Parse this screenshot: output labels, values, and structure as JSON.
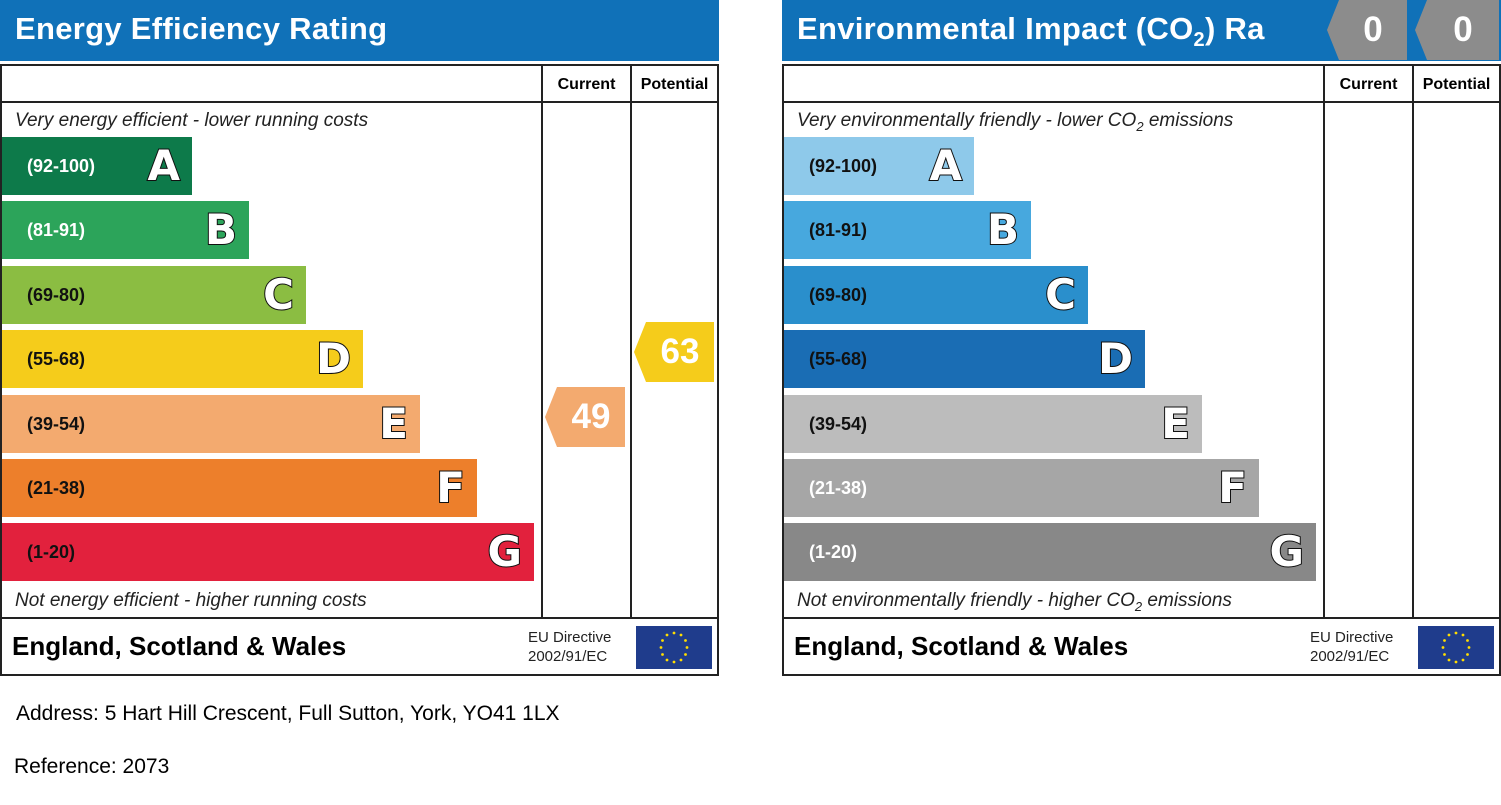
{
  "chart_data": [
    {
      "type": "bar",
      "title": "Energy Efficiency Rating",
      "columns": [
        "Current",
        "Potential"
      ],
      "top_note": "Very energy efficient - lower running costs",
      "bottom_note": "Not energy efficient - higher running costs",
      "categories": [
        "A",
        "B",
        "C",
        "D",
        "E",
        "F",
        "G"
      ],
      "ranges": [
        "(92-100)",
        "(81-91)",
        "(69-80)",
        "(55-68)",
        "(39-54)",
        "(21-38)",
        "(1-20)"
      ],
      "band_colors": [
        "#0d7a4a",
        "#2ca45a",
        "#8bbd42",
        "#f5cc1b",
        "#f3aa6f",
        "#ed7f2b",
        "#e2213d"
      ],
      "range_text_colors": [
        "#ffffff",
        "#ffffff",
        "#111111",
        "#111111",
        "#111111",
        "#111111",
        "#111111"
      ],
      "current": {
        "value": 49,
        "band": "E",
        "color": "#f3aa6f"
      },
      "potential": {
        "value": 63,
        "band": "D",
        "color": "#f5cc1b"
      },
      "footer_country": "England, Scotland & Wales",
      "footer_directive": [
        "EU Directive",
        "2002/91/EC"
      ]
    },
    {
      "type": "bar",
      "title": "Environmental Impact (CO2) Ra",
      "columns": [
        "Current",
        "Potential"
      ],
      "top_note": "Very environmentally friendly - lower CO2 emissions",
      "bottom_note": "Not environmentally friendly - higher CO2 emissions",
      "categories": [
        "A",
        "B",
        "C",
        "D",
        "E",
        "F",
        "G"
      ],
      "ranges": [
        "(92-100)",
        "(81-91)",
        "(69-80)",
        "(55-68)",
        "(39-54)",
        "(21-38)",
        "(1-20)"
      ],
      "band_colors": [
        "#8ec9ea",
        "#47a8de",
        "#2a8fcc",
        "#1a6db4",
        "#bcbcbc",
        "#a6a6a6",
        "#888888"
      ],
      "range_text_colors": [
        "#111111",
        "#111111",
        "#111111",
        "#111111",
        "#111111",
        "#ffffff",
        "#ffffff"
      ],
      "current": {
        "value": 0,
        "color": "#8c8c8c"
      },
      "potential": {
        "value": 0,
        "color": "#8c8c8c"
      },
      "footer_country": "England, Scotland & Wales",
      "footer_directive": [
        "EU Directive",
        "2002/91/EC"
      ]
    }
  ],
  "address": "Address: 5 Hart Hill Crescent, Full Sutton, York, YO41 1LX",
  "reference": "Reference: 2073"
}
